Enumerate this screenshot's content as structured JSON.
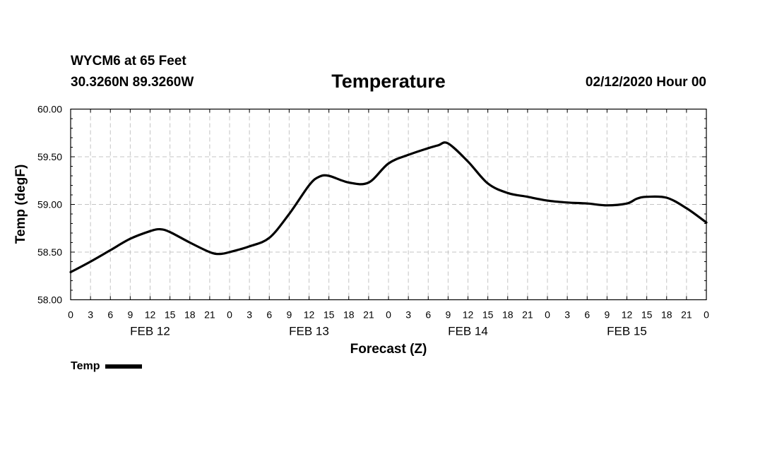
{
  "header": {
    "station": "WYCM6 at 65 Feet",
    "coords": "30.3260N 89.3260W",
    "title": "Temperature",
    "run": "02/12/2020 Hour 00"
  },
  "legend": {
    "label": "Temp",
    "color": "#000000"
  },
  "chart_data": {
    "type": "line",
    "title": "Temperature",
    "xlabel": "Forecast (Z)",
    "ylabel": "Temp (degF)",
    "ylim": [
      58.0,
      60.0
    ],
    "yticks": [
      "58.00",
      "58.50",
      "59.00",
      "59.50",
      "60.00"
    ],
    "xlim": [
      0,
      96
    ],
    "x_tick_step_hours": 3,
    "xtick_labels": [
      "0",
      "3",
      "6",
      "9",
      "12",
      "15",
      "18",
      "21",
      "0",
      "3",
      "6",
      "9",
      "12",
      "15",
      "18",
      "21",
      "0",
      "3",
      "6",
      "9",
      "12",
      "15",
      "18",
      "21",
      "0",
      "3",
      "6",
      "9",
      "12",
      "15",
      "18",
      "21",
      "0"
    ],
    "day_labels": [
      {
        "label": "FEB 12",
        "hour": 12
      },
      {
        "label": "FEB 13",
        "hour": 36
      },
      {
        "label": "FEB 14",
        "hour": 60
      },
      {
        "label": "FEB 15",
        "hour": 84
      }
    ],
    "grid": true,
    "series": [
      {
        "name": "Temp",
        "x": [
          0,
          3,
          6,
          9,
          12,
          13.5,
          15,
          18,
          21,
          22.5,
          24,
          27,
          30,
          33,
          36,
          37.5,
          39,
          42,
          45,
          48,
          51,
          54,
          55.5,
          57,
          60,
          63,
          66,
          69,
          72,
          75,
          78,
          81,
          84,
          85.5,
          87,
          90,
          93,
          96
        ],
        "values": [
          58.29,
          58.4,
          58.52,
          58.64,
          58.72,
          58.74,
          58.71,
          58.6,
          58.5,
          58.48,
          58.5,
          58.56,
          58.65,
          58.9,
          59.2,
          59.29,
          59.3,
          59.23,
          59.23,
          59.43,
          59.52,
          59.59,
          59.62,
          59.64,
          59.45,
          59.22,
          59.12,
          59.08,
          59.04,
          59.02,
          59.01,
          58.99,
          59.01,
          59.06,
          59.08,
          59.07,
          58.96,
          58.81
        ]
      }
    ]
  }
}
